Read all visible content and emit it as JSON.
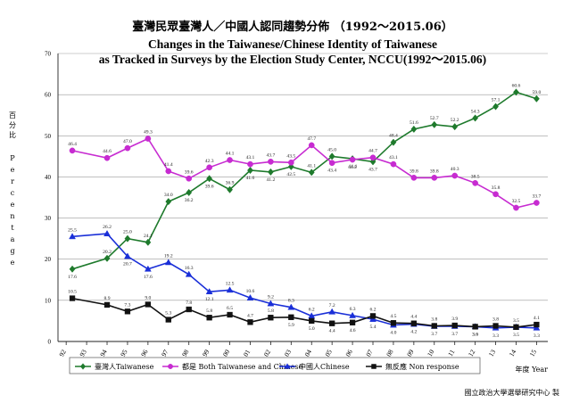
{
  "chart_data": {
    "type": "line",
    "title_zh": "臺灣民眾臺灣人／中國人認同趨勢分佈 （1992～2015.06）",
    "title_en_1": "Changes in the Taiwanese/Chinese Identity of Taiwanese",
    "title_en_2": "as Tracked in Surveys by the Election Study Center, NCCU(1992～2015.06)",
    "ylabel_zh": [
      "百",
      "分",
      "比"
    ],
    "ylabel_en": [
      "P",
      "e",
      "r",
      "c",
      "e",
      "n",
      "t",
      "a",
      "g",
      "e"
    ],
    "xunit": "年度 Year",
    "credit": "國立政治大學選舉研究中心 製",
    "ylim": [
      0,
      70
    ],
    "yticks": [
      "0",
      "10",
      "20",
      "30",
      "40",
      "50",
      "60",
      "70"
    ],
    "x": [
      1992,
      1993,
      1994,
      1995,
      1996,
      1997,
      1998,
      1999,
      2000,
      2001,
      2002,
      2003,
      2004,
      2005,
      2006,
      2007,
      2008,
      2009,
      2010,
      2011,
      2012,
      2013,
      2014,
      2015
    ],
    "xtick_labels": [
      "92",
      "93",
      "94",
      "95",
      "96",
      "97",
      "98",
      "99",
      "00",
      "01",
      "02",
      "03",
      "04",
      "05",
      "06",
      "07",
      "08",
      "09",
      "10",
      "11",
      "12",
      "13",
      "14",
      "15"
    ],
    "series": [
      {
        "name": "臺灣人Taiwanese",
        "color": "#1e7a2c",
        "marker": "diamond",
        "points": [
          [
            1992.3,
            17.6
          ],
          [
            1994.0,
            20.2
          ],
          [
            1995.0,
            25.0
          ],
          [
            1996.0,
            24.1
          ],
          [
            1997.0,
            34.0
          ],
          [
            1998.0,
            36.2
          ],
          [
            1999.0,
            39.6
          ],
          [
            2000.0,
            36.9
          ],
          [
            2001.0,
            41.6
          ],
          [
            2002.0,
            41.2
          ],
          [
            2003.0,
            42.5
          ],
          [
            2004.0,
            41.1
          ],
          [
            2005.0,
            45.0
          ],
          [
            2006.0,
            44.4
          ],
          [
            2007.0,
            43.7
          ],
          [
            2008.0,
            48.4
          ],
          [
            2009.0,
            51.6
          ],
          [
            2010.0,
            52.7
          ],
          [
            2011.0,
            52.2
          ],
          [
            2012.0,
            54.3
          ],
          [
            2013.0,
            57.1
          ],
          [
            2014.0,
            60.6
          ],
          [
            2015.0,
            59.0
          ]
        ],
        "labels": [
          "17.6",
          "20.2",
          "25.0",
          "24.1",
          "34.0",
          "36.2",
          "39.6",
          "36.9",
          "41.6",
          "41.2",
          "42.5",
          "41.1",
          "45.0",
          "44.4",
          "43.7",
          "48.4",
          "51.6",
          "52.7",
          "52.2",
          "54.3",
          "57.1",
          "60.6",
          "59.0"
        ],
        "label_pos": [
          "b",
          "a",
          "a",
          "a",
          "a",
          "b",
          "b",
          "a",
          "b",
          "b",
          "b",
          "a",
          "a",
          "b",
          "b",
          "a",
          "a",
          "a",
          "a",
          "a",
          "a",
          "a",
          "a"
        ]
      },
      {
        "name": "都是 Both Taiwanese and Chinese",
        "color": "#c72bd1",
        "marker": "circle",
        "points": [
          [
            1992.3,
            46.4
          ],
          [
            1994.0,
            44.6
          ],
          [
            1995.0,
            47.0
          ],
          [
            1996.0,
            49.3
          ],
          [
            1997.0,
            41.4
          ],
          [
            1998.0,
            39.6
          ],
          [
            1999.0,
            42.3
          ],
          [
            2000.0,
            44.1
          ],
          [
            2001.0,
            43.1
          ],
          [
            2002.0,
            43.7
          ],
          [
            2003.0,
            43.5
          ],
          [
            2004.0,
            47.7
          ],
          [
            2005.0,
            43.4
          ],
          [
            2006.0,
            44.2
          ],
          [
            2007.0,
            44.7
          ],
          [
            2008.0,
            43.1
          ],
          [
            2009.0,
            39.8
          ],
          [
            2010.0,
            39.8
          ],
          [
            2011.0,
            40.3
          ],
          [
            2012.0,
            38.5
          ],
          [
            2013.0,
            35.8
          ],
          [
            2014.0,
            32.5
          ],
          [
            2015.0,
            33.7
          ]
        ],
        "labels": [
          "46.4",
          "44.6",
          "47.0",
          "49.3",
          "41.4",
          "39.6",
          "42.3",
          "44.1",
          "43.1",
          "43.7",
          "43.5",
          "47.7",
          "43.4",
          "44.2",
          "44.7",
          "43.1",
          "39.8",
          "39.8",
          "40.3",
          "38.5",
          "35.8",
          "32.5",
          "33.7"
        ],
        "label_pos": [
          "a",
          "a",
          "a",
          "a",
          "a",
          "a",
          "a",
          "a",
          "a",
          "a",
          "a",
          "a",
          "b",
          "b",
          "a",
          "a",
          "a",
          "a",
          "a",
          "a",
          "a",
          "a",
          "a"
        ]
      },
      {
        "name": "中國人Chinese",
        "color": "#1a2fd8",
        "marker": "triangle",
        "points": [
          [
            1992.3,
            25.5
          ],
          [
            1994.0,
            26.2
          ],
          [
            1995.0,
            20.7
          ],
          [
            1996.0,
            17.6
          ],
          [
            1997.0,
            19.2
          ],
          [
            1998.0,
            16.3
          ],
          [
            1999.0,
            12.1
          ],
          [
            2000.0,
            12.5
          ],
          [
            2001.0,
            10.6
          ],
          [
            2002.0,
            9.2
          ],
          [
            2003.0,
            8.3
          ],
          [
            2004.0,
            6.2
          ],
          [
            2005.0,
            7.2
          ],
          [
            2006.0,
            6.3
          ],
          [
            2007.0,
            5.4
          ],
          [
            2008.0,
            4.0
          ],
          [
            2009.0,
            4.2
          ],
          [
            2010.0,
            3.7
          ],
          [
            2011.0,
            3.7
          ],
          [
            2012.0,
            3.6
          ],
          [
            2013.0,
            3.3
          ],
          [
            2014.0,
            3.5
          ],
          [
            2015.0,
            3.3
          ]
        ],
        "labels": [
          "25.5",
          "26.2",
          "20.7",
          "17.6",
          "19.2",
          "16.3",
          "12.1",
          "12.5",
          "10.6",
          "9.2",
          "8.3",
          "6.2",
          "7.2",
          "6.3",
          "5.4",
          "4.0",
          "4.2",
          "3.7",
          "3.7",
          "3.6",
          "3.3",
          "3.5",
          "3.3"
        ],
        "label_pos": [
          "a",
          "a",
          "b",
          "b",
          "a",
          "a",
          "b",
          "a",
          "a",
          "a",
          "a",
          "a",
          "a",
          "a",
          "b",
          "b",
          "b",
          "b",
          "b",
          "b",
          "b",
          "a",
          "b"
        ]
      },
      {
        "name": "無反應 Non response",
        "color": "#111111",
        "marker": "square",
        "points": [
          [
            1992.3,
            10.5
          ],
          [
            1994.0,
            8.9
          ],
          [
            1995.0,
            7.3
          ],
          [
            1996.0,
            9.0
          ],
          [
            1997.0,
            5.3
          ],
          [
            1998.0,
            7.8
          ],
          [
            1999.0,
            5.8
          ],
          [
            2000.0,
            6.5
          ],
          [
            2001.0,
            4.7
          ],
          [
            2002.0,
            5.8
          ],
          [
            2003.0,
            5.9
          ],
          [
            2004.0,
            5.0
          ],
          [
            2005.0,
            4.4
          ],
          [
            2006.0,
            4.6
          ],
          [
            2007.0,
            6.2
          ],
          [
            2008.0,
            4.5
          ],
          [
            2009.0,
            4.4
          ],
          [
            2010.0,
            3.8
          ],
          [
            2011.0,
            3.9
          ],
          [
            2012.0,
            3.6
          ],
          [
            2013.0,
            3.8
          ],
          [
            2014.0,
            3.5
          ],
          [
            2015.0,
            4.1
          ]
        ],
        "labels": [
          "10.5",
          "8.9",
          "7.3",
          "9.0",
          "5.3",
          "7.8",
          "5.8",
          "6.5",
          "4.7",
          "5.8",
          "5.9",
          "5.0",
          "4.4",
          "4.6",
          "6.2",
          "4.5",
          "4.4",
          "3.8",
          "3.9",
          "3.6",
          "3.8",
          "3.5",
          "4.1"
        ],
        "label_pos": [
          "a",
          "a",
          "a",
          "a",
          "a",
          "a",
          "a",
          "a",
          "a",
          "a",
          "b",
          "b",
          "b",
          "b",
          "a",
          "a",
          "a",
          "a",
          "a",
          "b",
          "a",
          "b",
          "a"
        ]
      }
    ],
    "legend_position": "bottom",
    "grid": true
  }
}
